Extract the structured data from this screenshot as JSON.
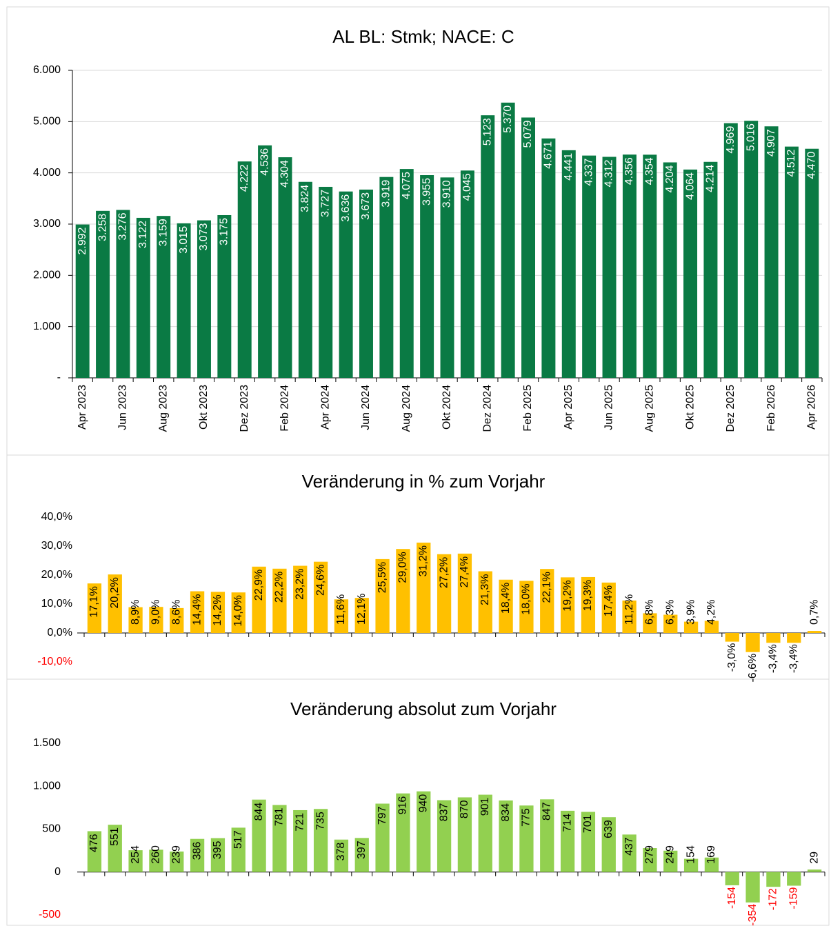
{
  "chart_data": [
    {
      "type": "bar",
      "title": "AL BL: Stmk; NACE: C",
      "categories": [
        "Apr 2023",
        null,
        "Jun 2023",
        null,
        "Aug 2023",
        null,
        "Okt 2023",
        null,
        "Dez 2023",
        null,
        "Feb 2024",
        null,
        "Apr 2024",
        null,
        "Jun 2024",
        null,
        "Aug 2024",
        null,
        "Okt 2024",
        null,
        "Dez 2024",
        null,
        "Feb 2025",
        null,
        "Apr 2025",
        null,
        "Jun 2025",
        null,
        "Aug 2025",
        null,
        "Okt 2025",
        null,
        "Dez 2025",
        null,
        "Feb 2026",
        null,
        "Apr 2026"
      ],
      "values": [
        2992,
        3258,
        3276,
        3122,
        3159,
        3015,
        3073,
        3175,
        4222,
        4536,
        4304,
        3824,
        3727,
        3636,
        3673,
        3919,
        4075,
        3955,
        3910,
        4045,
        5123,
        5370,
        5079,
        4671,
        4441,
        4337,
        4312,
        4356,
        4354,
        4204,
        4064,
        4214,
        4969,
        5016,
        4907,
        4512,
        4470
      ],
      "value_labels": [
        "2.992",
        "3.258",
        "3.276",
        "3.122",
        "3.159",
        "3.015",
        "3.073",
        "3.175",
        "4.222",
        "4.536",
        "4.304",
        "3.824",
        "3.727",
        "3.636",
        "3.673",
        "3.919",
        "4.075",
        "3.955",
        "3.910",
        "4.045",
        "5.123",
        "5.370",
        "5.079",
        "4.671",
        "4.441",
        "4.337",
        "4.312",
        "4.356",
        "4.354",
        "4.204",
        "4.064",
        "4.214",
        "4.969",
        "5.016",
        "4.907",
        "4.512",
        "4.470"
      ],
      "color": "#0a7a44",
      "label_color": "#ffffff",
      "ylim": [
        0,
        6000
      ],
      "yticks": [
        {
          "value": 0,
          "label": "-"
        },
        {
          "value": 1000,
          "label": "1.000"
        },
        {
          "value": 2000,
          "label": "2.000"
        },
        {
          "value": 3000,
          "label": "3.000"
        },
        {
          "value": 4000,
          "label": "4.000"
        },
        {
          "value": 5000,
          "label": "5.000"
        },
        {
          "value": 6000,
          "label": "6.000"
        }
      ],
      "grid": true
    },
    {
      "type": "bar",
      "title": "Veränderung in % zum Vorjahr",
      "values": [
        17.1,
        20.2,
        8.9,
        9.0,
        8.6,
        14.4,
        14.2,
        14.0,
        22.9,
        22.2,
        23.2,
        24.6,
        11.6,
        12.1,
        25.5,
        29.0,
        31.2,
        27.2,
        27.4,
        21.3,
        18.4,
        18.0,
        22.1,
        19.2,
        19.3,
        17.4,
        11.2,
        6.8,
        6.3,
        3.9,
        4.2,
        -3.0,
        -6.6,
        -3.4,
        -3.4,
        0.7
      ],
      "value_labels": [
        "17,1%",
        "20,2%",
        "8,9%",
        "9,0%",
        "8,6%",
        "14,4%",
        "14,2%",
        "14,0%",
        "22,9%",
        "22,2%",
        "23,2%",
        "24,6%",
        "11,6%",
        "12,1%",
        "25,5%",
        "29,0%",
        "31,2%",
        "27,2%",
        "27,4%",
        "21,3%",
        "18,4%",
        "18,0%",
        "22,1%",
        "19,2%",
        "19,3%",
        "17,4%",
        "11,2%",
        "6,8%",
        "6,3%",
        "3,9%",
        "4,2%",
        "-3,0%",
        "-6,6%",
        "-3,4%",
        "-3,4%",
        "0,7%"
      ],
      "color": "#ffc000",
      "label_color": "#000000",
      "negative_tick_color": "#ff0000",
      "ylim": [
        -10,
        40
      ],
      "yticks": [
        {
          "value": -10,
          "label": "-10,0%"
        },
        {
          "value": 0,
          "label": "0,0%"
        },
        {
          "value": 10,
          "label": "10,0%"
        },
        {
          "value": 20,
          "label": "20,0%"
        },
        {
          "value": 30,
          "label": "30,0%"
        },
        {
          "value": 40,
          "label": "40,0%"
        }
      ],
      "grid": false
    },
    {
      "type": "bar",
      "title": "Veränderung absolut zum Vorjahr",
      "values": [
        476,
        551,
        254,
        260,
        239,
        386,
        395,
        517,
        844,
        781,
        721,
        735,
        378,
        397,
        797,
        916,
        940,
        837,
        870,
        901,
        834,
        775,
        847,
        714,
        701,
        639,
        437,
        279,
        249,
        154,
        169,
        -154,
        -354,
        -172,
        -159,
        29
      ],
      "color": "#92d050",
      "label_color": "#000000",
      "negative_label_color": "#ff0000",
      "negative_tick_color": "#ff0000",
      "ylim": [
        -500,
        1500
      ],
      "yticks": [
        -500,
        0,
        500,
        {
          "value": 1000,
          "label": "1.000"
        },
        {
          "value": 1500,
          "label": "1.500"
        }
      ],
      "grid": false
    }
  ]
}
